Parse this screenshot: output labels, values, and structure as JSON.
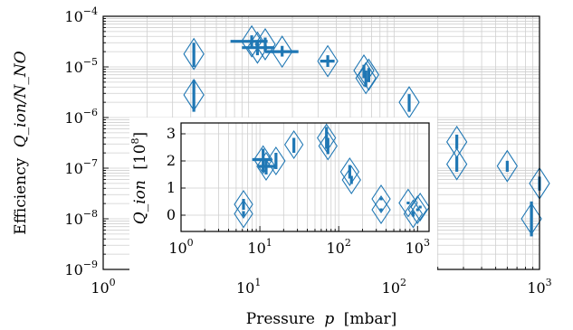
{
  "chart_data": [
    {
      "type": "scatter",
      "xlabel": "Pressure",
      "xlabel_var": "p",
      "xlabel_unit": "[mbar]",
      "ylabel": "Efficiency",
      "ylabel_math": "Q_ion/N_NO",
      "xscale": "log",
      "yscale": "log",
      "xlim": [
        1,
        1000
      ],
      "ylim": [
        1e-09,
        0.0001
      ],
      "x_ticks": [
        1,
        10,
        100,
        1000
      ],
      "x_tick_labels": [
        [
          "10",
          "0"
        ],
        [
          "10",
          "1"
        ],
        [
          "10",
          "2"
        ],
        [
          "10",
          "3"
        ]
      ],
      "y_ticks": [
        1e-09,
        1e-08,
        1e-07,
        1e-06,
        1e-05,
        0.0001
      ],
      "y_tick_labels": [
        [
          "10",
          "−9"
        ],
        [
          "10",
          "−8"
        ],
        [
          "10",
          "−7"
        ],
        [
          "10",
          "−6"
        ],
        [
          "10",
          "−5"
        ],
        [
          "10",
          "−4"
        ]
      ],
      "grid": true,
      "color": "#1f77b4",
      "points": [
        {
          "x": 4.2,
          "y": 1.8e-05,
          "ylo": 1e-05,
          "yhi": 3e-05
        },
        {
          "x": 4.2,
          "y": 2.8e-06,
          "ylo": 1.3e-06,
          "yhi": 5.5e-06
        },
        {
          "x": 10.5,
          "y": 3.2e-05,
          "xlo": 7.5,
          "xhi": 13.5,
          "ylo": 2.4e-05,
          "yhi": 4.2e-05
        },
        {
          "x": 11.5,
          "y": 2.4e-05,
          "xlo": 9.0,
          "xhi": 15.0,
          "ylo": 1.7e-05,
          "yhi": 3.3e-05
        },
        {
          "x": 13.0,
          "y": 2.8e-05,
          "ylo": 2e-05,
          "yhi": 3.8e-05
        },
        {
          "x": 17.0,
          "y": 2e-05,
          "xlo": 13.0,
          "xhi": 22.0,
          "ylo": 1.6e-05,
          "yhi": 2.6e-05
        },
        {
          "x": 35.0,
          "y": 1.3e-05,
          "xlo": 31.0,
          "xhi": 39.0,
          "ylo": 1e-05,
          "yhi": 1.7e-05
        },
        {
          "x": 62.0,
          "y": 8.5e-06,
          "ylo": 6e-06,
          "yhi": 1.1e-05
        },
        {
          "x": 64.0,
          "y": 6e-06,
          "ylo": 4e-06,
          "yhi": 8.5e-06
        },
        {
          "x": 67.0,
          "y": 7e-06,
          "ylo": 5e-06,
          "yhi": 9.5e-06
        },
        {
          "x": 127.0,
          "y": 2e-06,
          "ylo": 1.3e-06,
          "yhi": 2.9e-06
        },
        {
          "x": 270.0,
          "y": 3.3e-07,
          "ylo": 2.4e-07,
          "yhi": 4.6e-07
        },
        {
          "x": 270.0,
          "y": 1.2e-07,
          "ylo": 8.5e-08,
          "yhi": 1.7e-07
        },
        {
          "x": 600.0,
          "y": 1.1e-07,
          "ylo": 8.5e-08,
          "yhi": 1.4e-07
        },
        {
          "x": 880.0,
          "y": 1e-08,
          "ylo": 4.5e-09,
          "yhi": 2.2e-08
        },
        {
          "x": 1000.0,
          "y": 5e-08,
          "ylo": 3.6e-08,
          "yhi": 6.8e-08
        }
      ]
    },
    {
      "type": "scatter",
      "inset": true,
      "xlabel": "",
      "ylabel_math": "Q_ion",
      "ylabel_unit": "[10^8]",
      "ylabel_unit_base": "10",
      "ylabel_unit_exp": "8",
      "xscale": "log",
      "yscale": "linear",
      "xlim": [
        1,
        1400
      ],
      "ylim": [
        -0.6,
        3.4
      ],
      "x_ticks": [
        1,
        10,
        100,
        1000
      ],
      "x_tick_labels": [
        [
          "10",
          "0"
        ],
        [
          "10",
          "1"
        ],
        [
          "10",
          "2"
        ],
        [
          "10",
          "3"
        ]
      ],
      "y_ticks": [
        0,
        1,
        2,
        3
      ],
      "y_tick_labels": [
        "0",
        "1",
        "2",
        "3"
      ],
      "grid": true,
      "color": "#1f77b4",
      "points": [
        {
          "x": 6.2,
          "y": 0.4,
          "ylo": 0.2,
          "yhi": 0.6
        },
        {
          "x": 6.2,
          "y": 0.05,
          "ylo": -0.05,
          "yhi": 0.15
        },
        {
          "x": 11.0,
          "y": 2.05,
          "xlo": 8.0,
          "xhi": 14.0,
          "ylo": 1.6,
          "yhi": 2.45
        },
        {
          "x": 12.0,
          "y": 1.8,
          "xlo": 9.5,
          "xhi": 15.5,
          "ylo": 1.5,
          "yhi": 2.1
        },
        {
          "x": 16.0,
          "y": 2.0,
          "ylo": 1.7,
          "yhi": 2.3
        },
        {
          "x": 27.0,
          "y": 2.6,
          "ylo": 2.3,
          "yhi": 2.85
        },
        {
          "x": 70.0,
          "y": 2.85,
          "ylo": 2.45,
          "yhi": 3.25
        },
        {
          "x": 73.0,
          "y": 2.55,
          "ylo": 2.25,
          "yhi": 2.85
        },
        {
          "x": 138.0,
          "y": 1.6,
          "ylo": 1.35,
          "yhi": 1.85
        },
        {
          "x": 145.0,
          "y": 1.3,
          "ylo": 1.15,
          "yhi": 1.45
        },
        {
          "x": 345.0,
          "y": 0.6,
          "ylo": 0.55,
          "yhi": 0.65
        },
        {
          "x": 345.0,
          "y": 0.2,
          "ylo": 0.15,
          "yhi": 0.25
        },
        {
          "x": 760.0,
          "y": 0.45,
          "ylo": 0.4,
          "yhi": 0.5
        },
        {
          "x": 880.0,
          "y": 0.05,
          "ylo": -0.05,
          "yhi": 0.15
        },
        {
          "x": 1000.0,
          "y": 0.2,
          "ylo": 0.15,
          "yhi": 0.25
        },
        {
          "x": 1080.0,
          "y": 0.3,
          "ylo": 0.25,
          "yhi": 0.35
        }
      ]
    }
  ]
}
